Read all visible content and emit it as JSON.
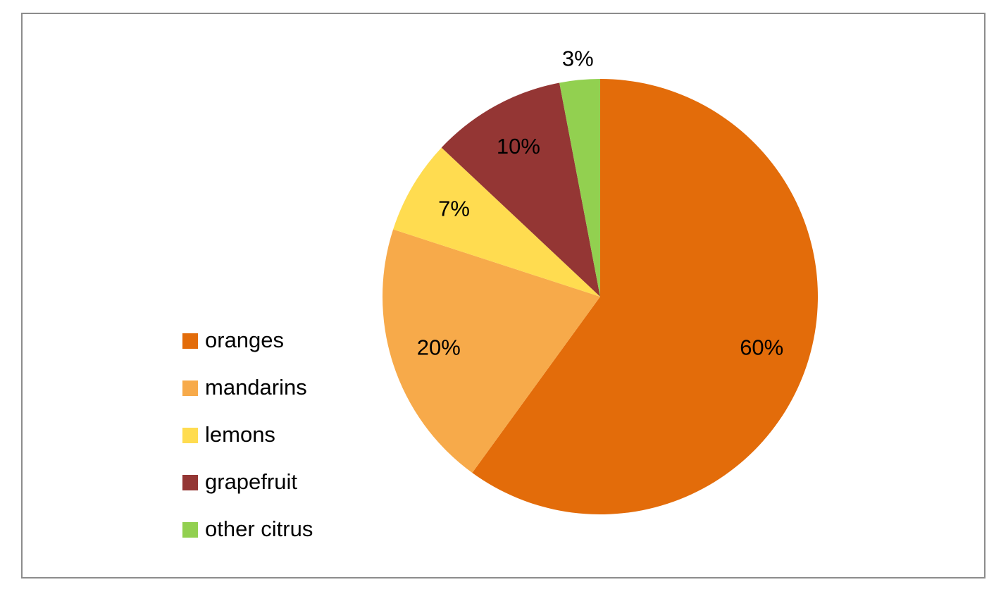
{
  "chart_data": {
    "type": "pie",
    "title": "",
    "start_angle": "12 o'clock, clockwise",
    "slices": [
      {
        "name": "oranges",
        "value": 60,
        "label": "60%",
        "color": "#E36C0A"
      },
      {
        "name": "mandarins",
        "value": 20,
        "label": "20%",
        "color": "#F7AA4A"
      },
      {
        "name": "lemons",
        "value": 7,
        "label": "7%",
        "color": "#FFDC50"
      },
      {
        "name": "grapefruit",
        "value": 10,
        "label": "10%",
        "color": "#943634"
      },
      {
        "name": "other citrus",
        "value": 3,
        "label": "3%",
        "color": "#92D050"
      }
    ],
    "legend": {
      "position": "left",
      "entries": [
        "oranges",
        "mandarins",
        "lemons",
        "grapefruit",
        "other citrus"
      ]
    }
  }
}
